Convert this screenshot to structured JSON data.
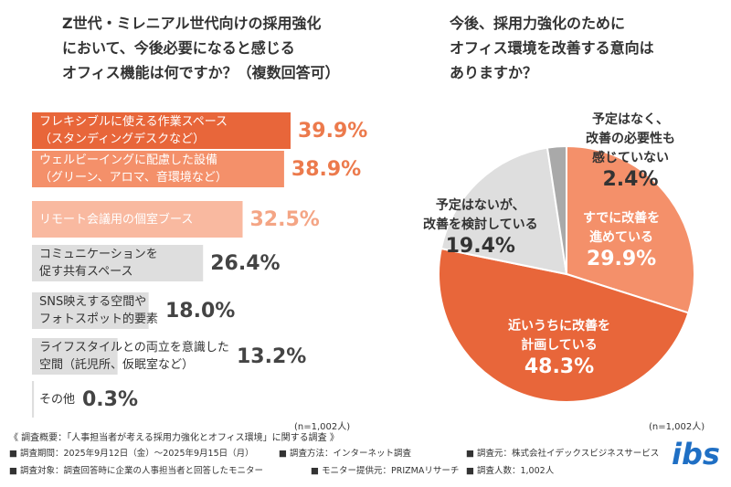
{
  "chart_data": [
    {
      "type": "bar",
      "orientation": "horizontal",
      "title": "Z世代・ミレニアル世代向けの採用強化\nにおいて、今後必要になると感じる\nオフィス機能は何ですか？（複数回答可）",
      "note": "(n=1,002人)",
      "categories": [
        "フレキシブルに使える作業スペース\n（スタンディングデスクなど）",
        "ウェルビーイングに配慮した設備\n（グリーン、アロマ、音環境など）",
        "リモート会議用の個室ブース",
        "コミュニケーションを\n促す共有スペース",
        "SNS映えする空間や\nフォトスポット的要素",
        "ライフスタイルとの両立を意識した\n空間（託児所、仮眠室など）",
        "その他"
      ],
      "values": [
        39.9,
        38.9,
        32.5,
        26.4,
        18.0,
        13.2,
        0.3
      ],
      "value_labels": [
        "39.9%",
        "38.9%",
        "32.5%",
        "26.4%",
        "18.0%",
        "13.2%",
        "0.3%"
      ],
      "colors": [
        "#e8663a",
        "#f4906a",
        "#f9b9a0",
        "#dedede",
        "#dedede",
        "#dedede",
        "#dedede"
      ],
      "category_label_colors": [
        "#ffffff",
        "#ffffff",
        "#ffffff",
        "#333333",
        "#333333",
        "#333333",
        "#333333"
      ],
      "value_label_colors": [
        "#ec7a4c",
        "#ec7a4c",
        "#f4a585",
        "#444444",
        "#444444",
        "#444444",
        "#444444"
      ]
    },
    {
      "type": "pie",
      "title": "今後、採用力強化のために\nオフィス環境を改善する意向は\nありますか？",
      "note": "(n=1,002人)",
      "categories": [
        "すでに改善を\n進めている",
        "近いうちに改善を\n計画している",
        "予定はないが、\n改善を検討している",
        "予定はなく、\n改善の必要性も\n感じていない"
      ],
      "values": [
        29.9,
        48.3,
        19.4,
        2.4
      ],
      "value_labels": [
        "29.9%",
        "48.3%",
        "19.4%",
        "2.4%"
      ],
      "colors": [
        "#f4906a",
        "#e8663a",
        "#dedede",
        "#a9a9a9"
      ],
      "label_colors": [
        "#ffffff",
        "#ffffff",
        "#333333",
        "#333333"
      ]
    }
  ],
  "footer": {
    "heading": "《 調査概要：「人事担当者が考える採用力強化とオフィス環境」に関する調査 》",
    "items": [
      "■ 調査期間：2025年9月12日（金）～2025年9月15日（月）",
      "■ 調査方法：インターネット調査",
      "■ 調査元：株式会社イデックスビジネスサービス",
      "■ 調査対象：調査回答時に企業の人事担当者と回答したモニター",
      "■ モニター提供元：PRIZMAリサーチ",
      "■ 調査人数：1,002人"
    ],
    "logo": "ibs"
  }
}
